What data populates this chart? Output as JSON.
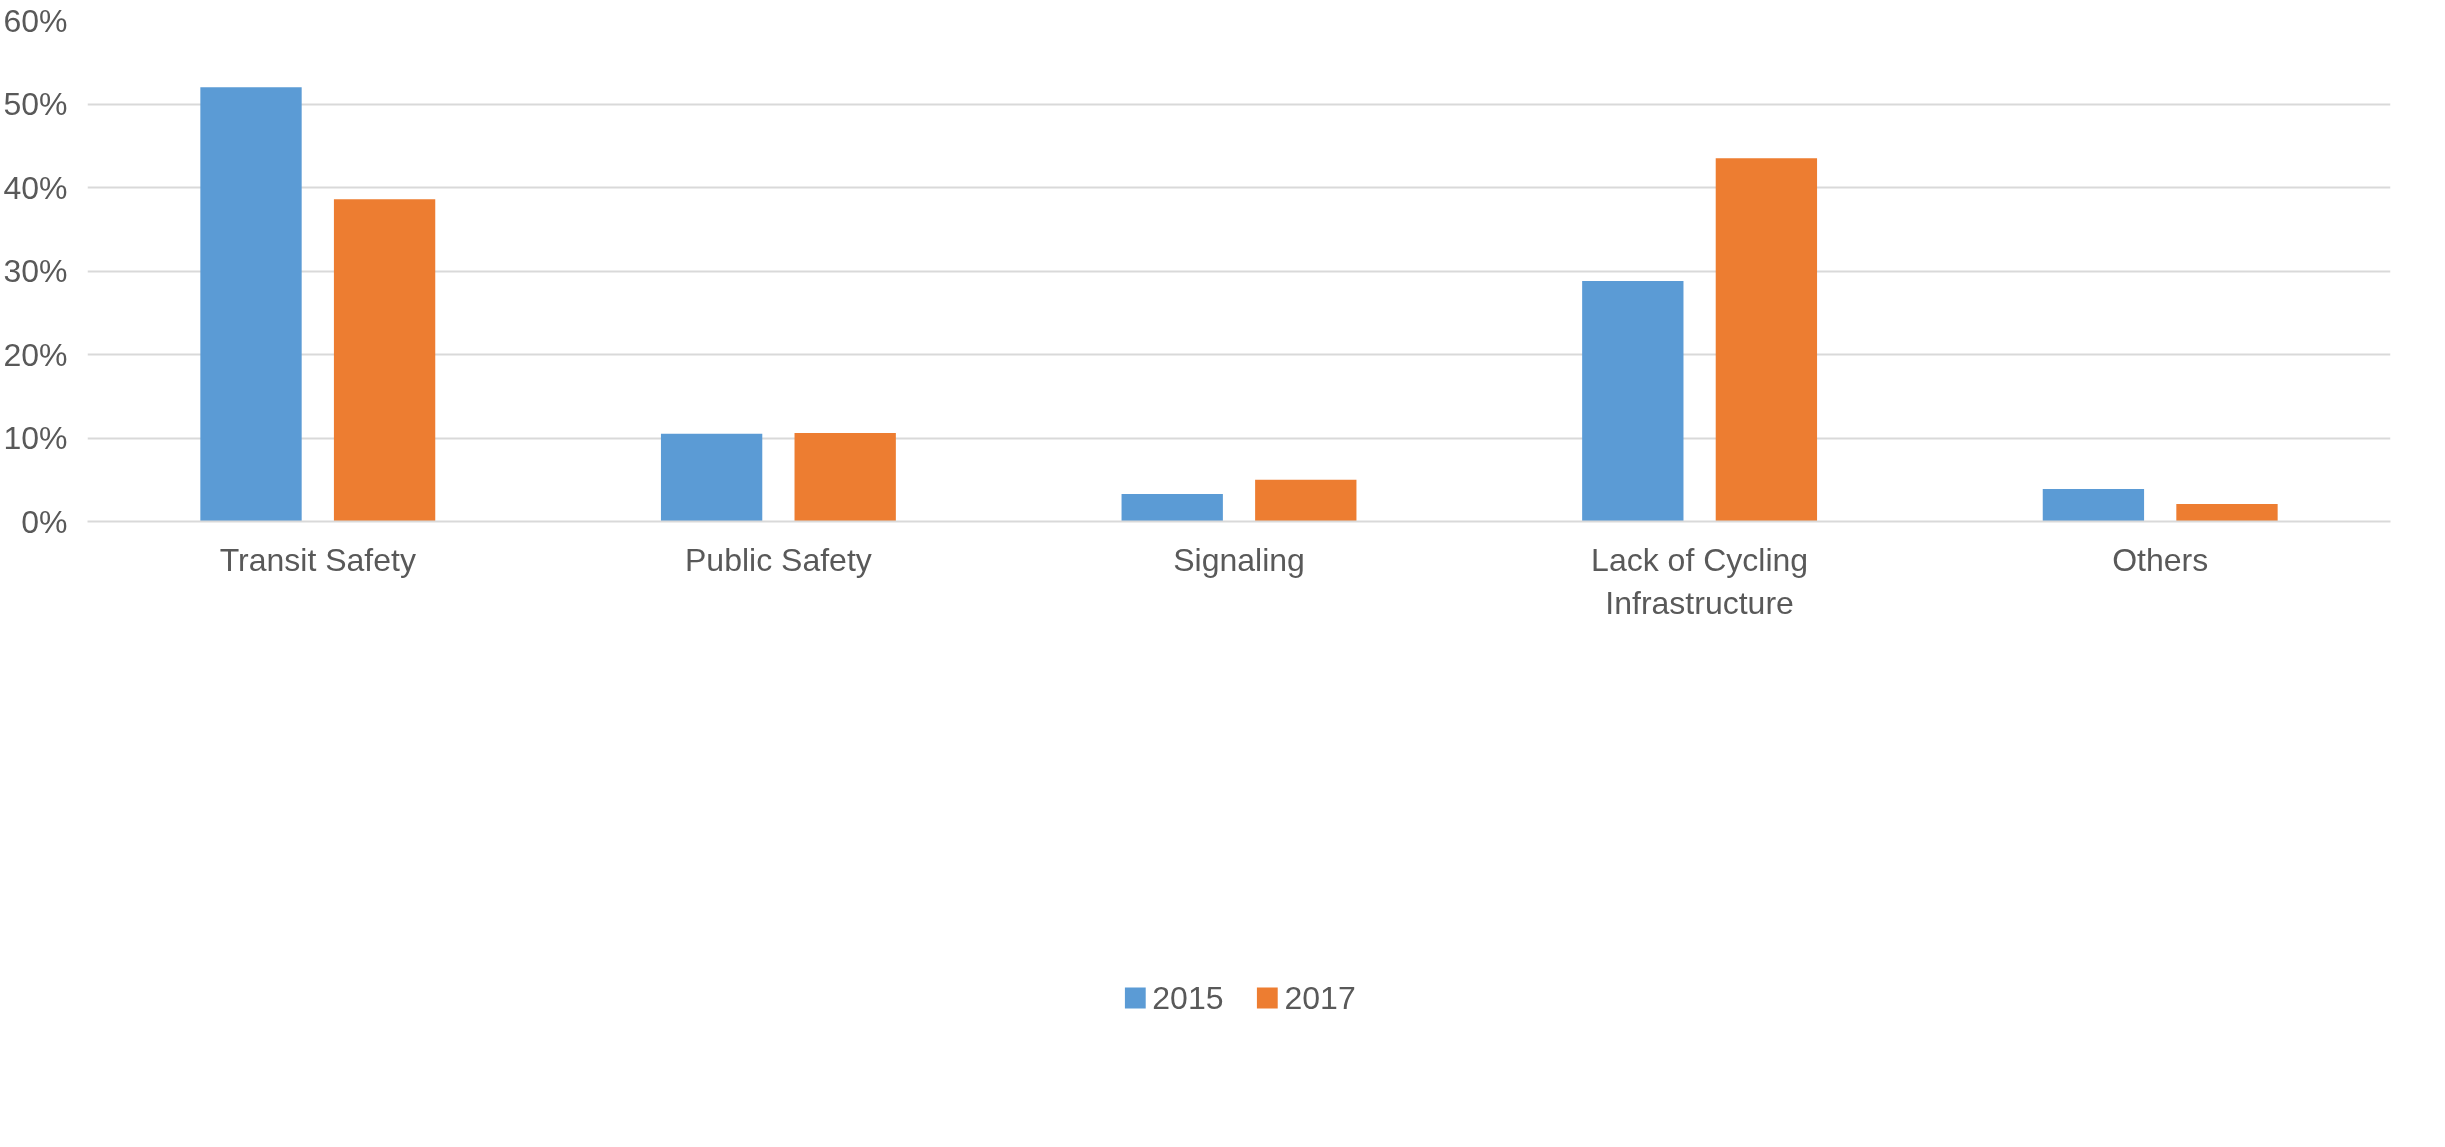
{
  "chart_data": {
    "type": "bar",
    "categories": [
      "Transit Safety",
      "Public Safety",
      "Signaling",
      "Lack of Cycling Infrastructure",
      "Others"
    ],
    "series": [
      {
        "name": "2015",
        "color": "#5b9bd5",
        "values": [
          52.0,
          10.5,
          3.3,
          28.8,
          3.9
        ]
      },
      {
        "name": "2017",
        "color": "#ed7d31",
        "values": [
          38.6,
          10.6,
          5.0,
          43.5,
          2.1
        ]
      }
    ],
    "ylim": [
      0,
      60
    ],
    "yticks": [
      {
        "value": 0,
        "label": "0%"
      },
      {
        "value": 10,
        "label": "10%"
      },
      {
        "value": 20,
        "label": "20%"
      },
      {
        "value": 30,
        "label": "30%"
      },
      {
        "value": 40,
        "label": "40%"
      },
      {
        "value": 50,
        "label": "50%"
      },
      {
        "value": 60,
        "label": "60%"
      }
    ],
    "grid": "y",
    "legend": "bottom"
  }
}
